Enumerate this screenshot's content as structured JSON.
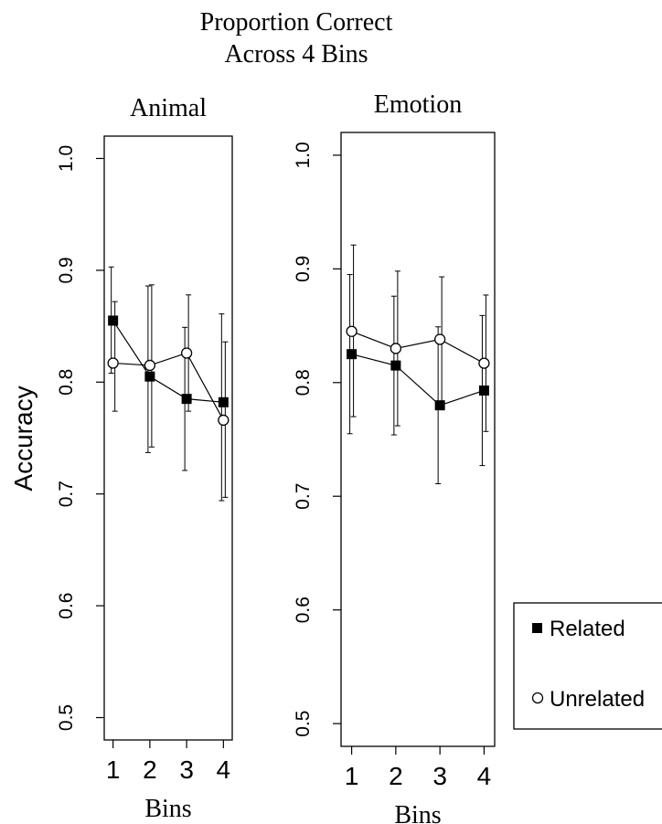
{
  "chart_data": {
    "type": "line",
    "title": [
      "Proportion Correct",
      "Across 4 Bins"
    ],
    "ylabel": "Accuracy",
    "legend": {
      "placement": "bottom-right",
      "entries": [
        {
          "name": "Related",
          "marker": "filled-square"
        },
        {
          "name": "Unrelated",
          "marker": "open-circle"
        }
      ]
    },
    "panels": [
      {
        "title": "Animal",
        "xlabel": "Bins",
        "x": [
          1,
          2,
          3,
          4
        ],
        "x_tick_labels": [
          "1",
          "2",
          "3",
          "4"
        ],
        "y_ticks": [
          0.5,
          0.6,
          0.7,
          0.8,
          0.9,
          1.0
        ],
        "y_tick_labels": [
          "0.5",
          "0.6",
          "0.7",
          "0.8",
          "0.9",
          "1.0"
        ],
        "ylim": [
          0.48,
          1.02
        ],
        "series": [
          {
            "name": "Related",
            "values": [
              0.855,
              0.805,
              0.785,
              0.782
            ],
            "err_low": [
              0.808,
              0.737,
              0.721,
              0.694
            ],
            "err_high": [
              0.903,
              0.886,
              0.849,
              0.861
            ]
          },
          {
            "name": "Unrelated",
            "values": [
              0.817,
              0.815,
              0.826,
              0.766
            ],
            "err_low": [
              0.774,
              0.742,
              0.774,
              0.697
            ],
            "err_high": [
              0.872,
              0.887,
              0.878,
              0.836
            ]
          }
        ]
      },
      {
        "title": "Emotion",
        "xlabel": "Bins",
        "x": [
          1,
          2,
          3,
          4
        ],
        "x_tick_labels": [
          "1",
          "2",
          "3",
          "4"
        ],
        "y_ticks": [
          0.5,
          0.6,
          0.7,
          0.8,
          0.9,
          1.0
        ],
        "y_tick_labels": [
          "0.5",
          "0.6",
          "0.7",
          "0.8",
          "0.9",
          "1.0"
        ],
        "ylim": [
          0.48,
          1.02
        ],
        "series": [
          {
            "name": "Related",
            "values": [
              0.825,
              0.815,
              0.78,
              0.793
            ],
            "err_low": [
              0.755,
              0.754,
              0.711,
              0.727
            ],
            "err_high": [
              0.895,
              0.876,
              0.849,
              0.859
            ]
          },
          {
            "name": "Unrelated",
            "values": [
              0.845,
              0.83,
              0.838,
              0.817
            ],
            "err_low": [
              0.77,
              0.762,
              0.783,
              0.757
            ],
            "err_high": [
              0.921,
              0.898,
              0.893,
              0.877
            ]
          }
        ]
      }
    ]
  }
}
